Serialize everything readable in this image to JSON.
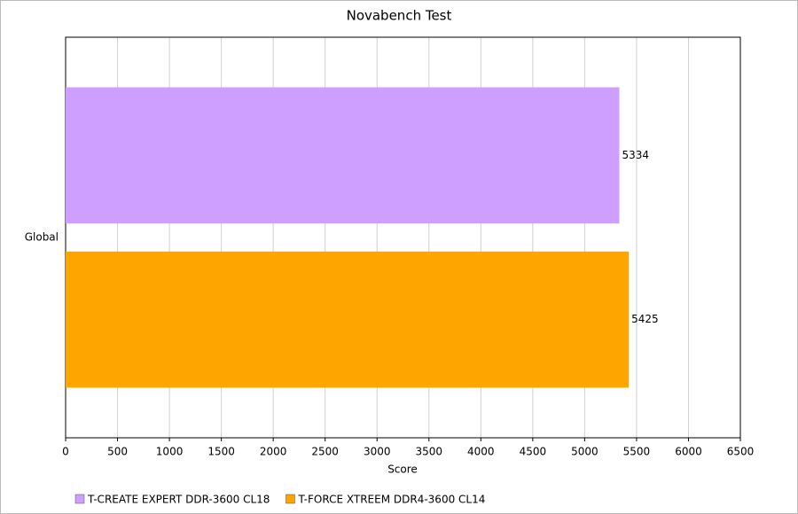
{
  "chart_data": {
    "type": "barh",
    "title": "Novabench Test",
    "xlabel": "Score",
    "categories": [
      "Global"
    ],
    "series": [
      {
        "name": "T-CREATE EXPERT DDR-3600 CL18",
        "color": "#cf9fff",
        "values": [
          5334
        ]
      },
      {
        "name": "T-FORCE XTREEM DDR4-3600 CL14",
        "color": "#ffa500",
        "values": [
          5425
        ]
      }
    ],
    "xlim": [
      0,
      6500
    ],
    "xticks": [
      0,
      500,
      1000,
      1500,
      2000,
      2500,
      3000,
      3500,
      4000,
      4500,
      5000,
      5500,
      6000,
      6500
    ],
    "grid": true,
    "legend": "bottom"
  }
}
